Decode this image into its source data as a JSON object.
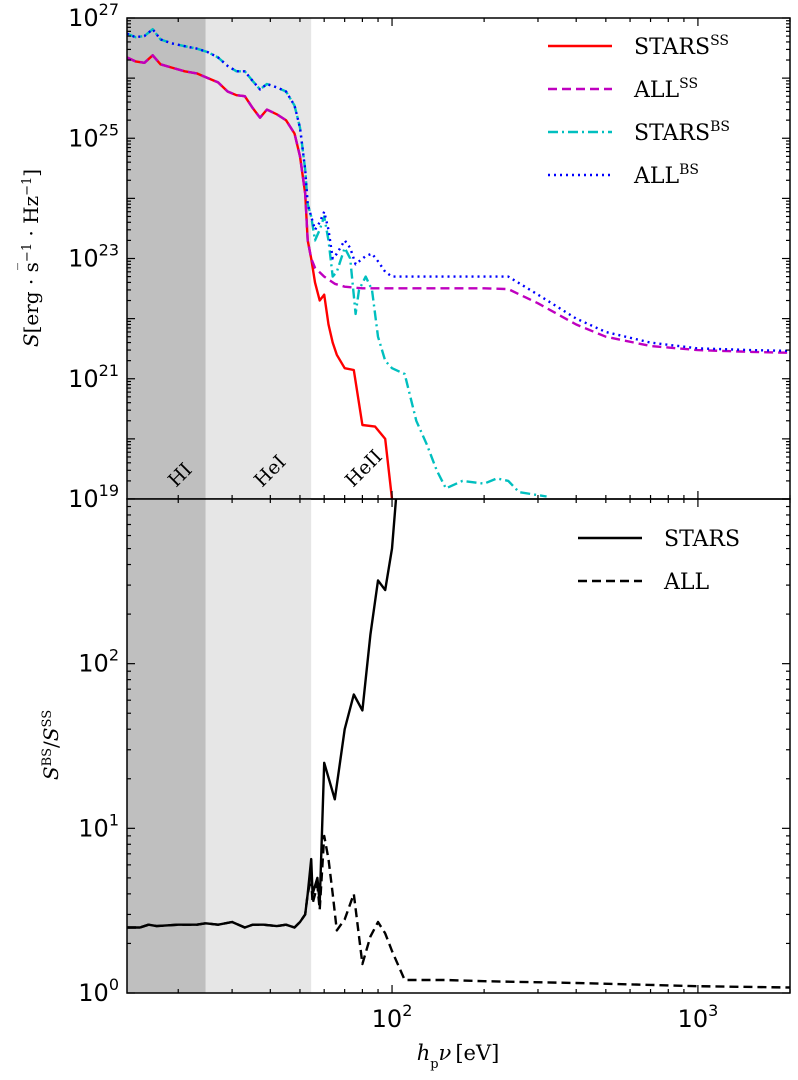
{
  "chart_data": [
    {
      "type": "line",
      "panel": "top",
      "ylabel_parts": {
        "S": "S",
        "unit": "[erg · s",
        "exp": "−1",
        "mid": " · Hz",
        "exp2": "−1",
        "close": "]"
      },
      "xscale": "log",
      "yscale": "log",
      "xlim": [
        13.6,
        2000
      ],
      "ylim": [
        1e+19,
        1e+27
      ],
      "y_tick_labels": [
        {
          "base": "10",
          "exp": "19",
          "value": 1e+19
        },
        {
          "base": "10",
          "exp": "21",
          "value": 1e+21
        },
        {
          "base": "10",
          "exp": "23",
          "value": 1e+23
        },
        {
          "base": "10",
          "exp": "25",
          "value": 1e+25
        },
        {
          "base": "10",
          "exp": "27",
          "value": 1e+27
        }
      ],
      "bands": [
        {
          "label": "HI",
          "x0": 13.6,
          "x1": 24.6,
          "color": "#bfbfbf"
        },
        {
          "label": "HeI",
          "x0": 24.6,
          "x1": 54.4,
          "color": "#e6e6e6"
        },
        {
          "label": "HeII",
          "x0": 54.4,
          "x1": 54.4,
          "color": "#ffffff"
        }
      ],
      "legend_position": "top-right",
      "series": [
        {
          "name": "STARS",
          "name_sup": "SS",
          "color": "#ff0000",
          "dash": "solid",
          "points": [
            [
              13.6,
              2.2e+26
            ],
            [
              14.5,
              1.9e+26
            ],
            [
              15.5,
              1.8e+26
            ],
            [
              16.5,
              2.4e+26
            ],
            [
              17.5,
              1.7e+26
            ],
            [
              19,
              1.5e+26
            ],
            [
              21,
              1.3e+26
            ],
            [
              23,
              1.2e+26
            ],
            [
              25,
              1e+26
            ],
            [
              27,
              8.5e+25
            ],
            [
              29,
              6e+25
            ],
            [
              31,
              5.2e+25
            ],
            [
              33,
              5e+25
            ],
            [
              35,
              3.2e+25
            ],
            [
              37,
              2.2e+25
            ],
            [
              39,
              3e+25
            ],
            [
              42,
              2.5e+25
            ],
            [
              45,
              2e+25
            ],
            [
              48,
              1.2e+25
            ],
            [
              50,
              5e+24
            ],
            [
              52,
              1.2e+24
            ],
            [
              53,
              2e+23
            ],
            [
              54.4,
              1e+23
            ],
            [
              56,
              4e+22
            ],
            [
              58,
              2e+22
            ],
            [
              60,
              2.5e+22
            ],
            [
              62,
              8e+21
            ],
            [
              64,
              4e+21
            ],
            [
              66,
              2.5e+21
            ],
            [
              70,
              1.5e+21
            ],
            [
              75,
              1.4e+21
            ],
            [
              80,
              1.7e+20
            ],
            [
              88,
              1.6e+20
            ],
            [
              95,
              1e+20
            ],
            [
              100,
              1e+19
            ]
          ]
        },
        {
          "name": "ALL",
          "name_sup": "SS",
          "color": "#bf00bf",
          "dash": "dashed",
          "points": [
            [
              13.6,
              2.2e+26
            ],
            [
              14.5,
              1.9e+26
            ],
            [
              15.5,
              1.8e+26
            ],
            [
              16.5,
              2.4e+26
            ],
            [
              17.5,
              1.7e+26
            ],
            [
              19,
              1.5e+26
            ],
            [
              21,
              1.3e+26
            ],
            [
              23,
              1.2e+26
            ],
            [
              25,
              1e+26
            ],
            [
              27,
              8.5e+25
            ],
            [
              29,
              6e+25
            ],
            [
              31,
              5.2e+25
            ],
            [
              33,
              5e+25
            ],
            [
              35,
              3.2e+25
            ],
            [
              37,
              2.2e+25
            ],
            [
              39,
              3e+25
            ],
            [
              42,
              2.5e+25
            ],
            [
              45,
              2e+25
            ],
            [
              48,
              1.2e+25
            ],
            [
              50,
              5e+24
            ],
            [
              52,
              1.2e+24
            ],
            [
              53,
              2e+23
            ],
            [
              54.4,
              1e+23
            ],
            [
              56,
              7e+22
            ],
            [
              60,
              5e+22
            ],
            [
              65,
              3.8e+22
            ],
            [
              70,
              3.4e+22
            ],
            [
              80,
              3.2e+22
            ],
            [
              100,
              3.2e+22
            ],
            [
              150,
              3.2e+22
            ],
            [
              200,
              3.2e+22
            ],
            [
              240,
              3.1e+22
            ],
            [
              300,
              1.8e+22
            ],
            [
              400,
              8e+21
            ],
            [
              500,
              5e+21
            ],
            [
              700,
              3.5e+21
            ],
            [
              1000,
              3e+21
            ],
            [
              1500,
              2.8e+21
            ],
            [
              2000,
              2.7e+21
            ]
          ]
        },
        {
          "name": "STARS",
          "name_sup": "BS",
          "color": "#00bfbf",
          "dash": "dashdot",
          "points": [
            [
              13.6,
              5.5e+26
            ],
            [
              14.5,
              4.8e+26
            ],
            [
              15.5,
              5e+26
            ],
            [
              16.5,
              6.5e+26
            ],
            [
              17.5,
              4.4e+26
            ],
            [
              19,
              3.8e+26
            ],
            [
              21,
              3.4e+26
            ],
            [
              23,
              3.1e+26
            ],
            [
              25,
              2.7e+26
            ],
            [
              27,
              2.2e+26
            ],
            [
              29,
              1.6e+26
            ],
            [
              31,
              1.3e+26
            ],
            [
              33,
              1.3e+26
            ],
            [
              35,
              9e+25
            ],
            [
              37,
              6.5e+25
            ],
            [
              39,
              8e+25
            ],
            [
              42,
              7e+25
            ],
            [
              45,
              6e+25
            ],
            [
              48,
              3.5e+25
            ],
            [
              50,
              1.5e+25
            ],
            [
              52,
              3e+24
            ],
            [
              53,
              8e+23
            ],
            [
              54.4,
              5e+23
            ],
            [
              56,
              2e+23
            ],
            [
              58,
              3e+23
            ],
            [
              60,
              5e+23
            ],
            [
              62,
              2e+23
            ],
            [
              64,
              5e+22
            ],
            [
              66,
              6e+22
            ],
            [
              70,
              1.5e+23
            ],
            [
              73,
              1e+23
            ],
            [
              76,
              1.2e+22
            ],
            [
              78,
              3e+22
            ],
            [
              82,
              5e+22
            ],
            [
              86,
              3e+22
            ],
            [
              90,
              5e+21
            ],
            [
              95,
              2e+21
            ],
            [
              100,
              1.5e+21
            ],
            [
              110,
              1.2e+21
            ],
            [
              120,
              2e+20
            ],
            [
              130,
              8e+19
            ],
            [
              140,
              3e+19
            ],
            [
              150,
              1.5e+19
            ],
            [
              170,
              2e+19
            ],
            [
              200,
              1.8e+19
            ],
            [
              220,
              2.2e+19
            ],
            [
              240,
              2e+19
            ],
            [
              260,
              1.3e+19
            ],
            [
              320,
              1.1e+19
            ]
          ]
        },
        {
          "name": "ALL",
          "name_sup": "BS",
          "color": "#0000ff",
          "dash": "dotted",
          "points": [
            [
              13.6,
              5.5e+26
            ],
            [
              14.5,
              4.8e+26
            ],
            [
              15.5,
              5e+26
            ],
            [
              16.5,
              6.5e+26
            ],
            [
              17.5,
              4.4e+26
            ],
            [
              19,
              3.8e+26
            ],
            [
              21,
              3.4e+26
            ],
            [
              23,
              3.1e+26
            ],
            [
              25,
              2.7e+26
            ],
            [
              27,
              2.2e+26
            ],
            [
              29,
              1.6e+26
            ],
            [
              31,
              1.3e+26
            ],
            [
              33,
              1.3e+26
            ],
            [
              35,
              9e+25
            ],
            [
              37,
              6.5e+25
            ],
            [
              39,
              8e+25
            ],
            [
              42,
              7e+25
            ],
            [
              45,
              6e+25
            ],
            [
              48,
              3.5e+25
            ],
            [
              50,
              1.5e+25
            ],
            [
              52,
              3e+24
            ],
            [
              53,
              8e+23
            ],
            [
              54.4,
              5e+23
            ],
            [
              56,
              3e+23
            ],
            [
              58,
              4e+23
            ],
            [
              60,
              6e+23
            ],
            [
              62,
              3e+23
            ],
            [
              64,
              1e+23
            ],
            [
              66,
              1.2e+23
            ],
            [
              70,
              2e+23
            ],
            [
              73,
              1.5e+23
            ],
            [
              76,
              8e+22
            ],
            [
              82,
              1.1e+23
            ],
            [
              86,
              1.2e+23
            ],
            [
              90,
              9e+22
            ],
            [
              95,
              6e+22
            ],
            [
              100,
              5e+22
            ],
            [
              150,
              5e+22
            ],
            [
              200,
              5e+22
            ],
            [
              240,
              5e+22
            ],
            [
              300,
              2.5e+22
            ],
            [
              400,
              1e+22
            ],
            [
              500,
              6e+21
            ],
            [
              700,
              4e+21
            ],
            [
              1000,
              3.2e+21
            ],
            [
              1500,
              3e+21
            ],
            [
              2000,
              2.9e+21
            ]
          ]
        }
      ]
    },
    {
      "type": "line",
      "panel": "bottom",
      "ylabel_parts": {
        "num": "S",
        "num_sup": "BS",
        "sep": "/",
        "den": "S",
        "den_sup": "SS"
      },
      "xlabel_parts": {
        "h": "h",
        "sub": "p",
        "nu": "ν",
        "unit": "[eV]"
      },
      "xscale": "log",
      "yscale": "log",
      "xlim": [
        13.6,
        2000
      ],
      "ylim": [
        1,
        1000
      ],
      "x_tick_labels": [
        {
          "base": "10",
          "exp": "2",
          "value": 100
        },
        {
          "base": "10",
          "exp": "3",
          "value": 1000
        }
      ],
      "y_tick_labels": [
        {
          "base": "10",
          "exp": "0",
          "value": 1
        },
        {
          "base": "10",
          "exp": "1",
          "value": 10
        },
        {
          "base": "10",
          "exp": "2",
          "value": 100
        }
      ],
      "legend_position": "top-right",
      "series": [
        {
          "name": "STARS",
          "color": "#000000",
          "dash": "solid",
          "points": [
            [
              13.6,
              2.5
            ],
            [
              15,
              2.5
            ],
            [
              16,
              2.6
            ],
            [
              17,
              2.55
            ],
            [
              20,
              2.6
            ],
            [
              23,
              2.6
            ],
            [
              24.6,
              2.65
            ],
            [
              27,
              2.6
            ],
            [
              30,
              2.7
            ],
            [
              33,
              2.5
            ],
            [
              35,
              2.6
            ],
            [
              38,
              2.6
            ],
            [
              42,
              2.55
            ],
            [
              45,
              2.6
            ],
            [
              48,
              2.5
            ],
            [
              50,
              2.7
            ],
            [
              52,
              3
            ],
            [
              53,
              4
            ],
            [
              54.4,
              6.5
            ],
            [
              55,
              4
            ],
            [
              57,
              5
            ],
            [
              58,
              3.5
            ],
            [
              60,
              25
            ],
            [
              65,
              15
            ],
            [
              70,
              40
            ],
            [
              75,
              65
            ],
            [
              80,
              52
            ],
            [
              85,
              150
            ],
            [
              90,
              320
            ],
            [
              95,
              280
            ],
            [
              100,
              500
            ],
            [
              103,
              1000
            ]
          ]
        },
        {
          "name": "ALL",
          "color": "#000000",
          "dash": "dashed",
          "points": [
            [
              13.6,
              2.5
            ],
            [
              15,
              2.5
            ],
            [
              16,
              2.6
            ],
            [
              17,
              2.55
            ],
            [
              20,
              2.6
            ],
            [
              23,
              2.6
            ],
            [
              24.6,
              2.65
            ],
            [
              27,
              2.6
            ],
            [
              30,
              2.7
            ],
            [
              33,
              2.5
            ],
            [
              35,
              2.6
            ],
            [
              38,
              2.6
            ],
            [
              42,
              2.55
            ],
            [
              45,
              2.6
            ],
            [
              48,
              2.5
            ],
            [
              50,
              2.7
            ],
            [
              52,
              3
            ],
            [
              53,
              4
            ],
            [
              54.4,
              5
            ],
            [
              55,
              3.5
            ],
            [
              57,
              4.5
            ],
            [
              58,
              3.2
            ],
            [
              60,
              9
            ],
            [
              62,
              6.5
            ],
            [
              64,
              4
            ],
            [
              66,
              2.4
            ],
            [
              70,
              2.8
            ],
            [
              75,
              4
            ],
            [
              80,
              1.5
            ],
            [
              85,
              2.2
            ],
            [
              90,
              2.7
            ],
            [
              95,
              2.3
            ],
            [
              100,
              1.8
            ],
            [
              110,
              1.2
            ],
            [
              150,
              1.2
            ],
            [
              200,
              1.18
            ],
            [
              400,
              1.15
            ],
            [
              700,
              1.12
            ],
            [
              1000,
              1.1
            ],
            [
              2000,
              1.08
            ]
          ]
        }
      ]
    }
  ]
}
